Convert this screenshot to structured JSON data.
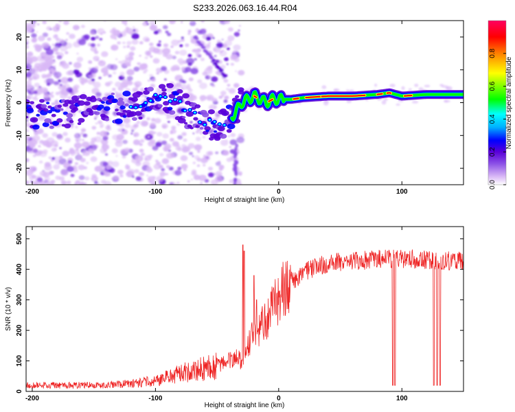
{
  "title": "S233.2026.063.16.44.R04",
  "chart_data": [
    {
      "type": "heatmap",
      "title": "S233.2026.063.16.44.R04",
      "xlabel": "Height of straight line (km)",
      "ylabel": "Frequency (Hz)",
      "xlim": [
        -205,
        150
      ],
      "ylim": [
        -25,
        25
      ],
      "xticks": [
        -200,
        -100,
        0,
        100
      ],
      "yticks": [
        -20,
        -10,
        0,
        10,
        20
      ],
      "colorbar": {
        "label": "Normalized spectral amplitude",
        "range": [
          0,
          1
        ],
        "ticks": [
          "0.0",
          "0.2",
          "0.4",
          "0.6",
          "0.8"
        ],
        "colors": [
          "#ffffff",
          "#d9b8f6",
          "#8a4fe6",
          "#5a00d8",
          "#0000ff",
          "#00b0ff",
          "#00ffff",
          "#00ff00",
          "#ffff00",
          "#ff8000",
          "#ff0000",
          "#ff0060"
        ]
      },
      "ridge": {
        "x": [
          -200,
          -170,
          -140,
          -115,
          -100,
          -90,
          -80,
          -70,
          -60,
          -50,
          -45,
          -40,
          -35,
          -30,
          -25,
          -20,
          -15,
          -10,
          -5,
          0,
          10,
          20,
          40,
          60,
          80,
          90,
          100,
          120,
          150
        ],
        "y": [
          -4,
          -3,
          -2,
          -1,
          1,
          2,
          -1,
          -4,
          -6,
          -7,
          -6,
          -5,
          -3,
          0,
          1,
          2,
          1,
          0,
          1,
          1,
          1,
          1.5,
          2,
          2,
          2.5,
          3,
          2,
          2.5,
          2.5
        ]
      }
    },
    {
      "type": "line",
      "xlabel": "Height of straight line (km)",
      "ylabel": "SNR (10 * v/v)",
      "xlim": [
        -205,
        150
      ],
      "ylim": [
        0,
        540
      ],
      "xticks": [
        -200,
        -100,
        0,
        100
      ],
      "yticks": [
        0,
        100,
        200,
        300,
        400,
        500
      ],
      "line_color": "#ee2222",
      "trend": {
        "x": [
          -205,
          -150,
          -120,
          -100,
          -80,
          -60,
          -45,
          -35,
          -30,
          -25,
          -20,
          -10,
          0,
          10,
          20,
          40,
          60,
          80,
          100,
          120,
          150
        ],
        "y": [
          20,
          20,
          25,
          35,
          60,
          75,
          90,
          110,
          100,
          150,
          190,
          240,
          310,
          360,
          390,
          420,
          425,
          435,
          435,
          430,
          425
        ]
      },
      "spikes": [
        {
          "x": -29,
          "y": 480
        },
        {
          "x": -28,
          "y": 460
        },
        {
          "x": -20,
          "y": 380
        },
        {
          "x": -18,
          "y": 300
        }
      ],
      "dropouts": [
        {
          "x": 92.5,
          "y": 20
        },
        {
          "x": 94.5,
          "y": 20
        },
        {
          "x": 126,
          "y": 20
        },
        {
          "x": 128.5,
          "y": 20
        },
        {
          "x": 131,
          "y": 20
        }
      ]
    }
  ]
}
